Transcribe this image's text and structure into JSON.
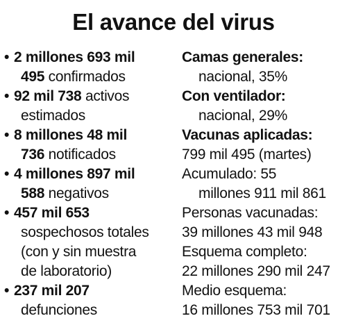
{
  "title": "El avance del virus",
  "bullet": "•",
  "left": {
    "confirmados": {
      "l1": "2 millones 693 mil",
      "l2_num": "495",
      "l2_text": " confirmados"
    },
    "activos": {
      "l1_num": "92 mil 738",
      "l1_text": " activos",
      "l2": "estimados"
    },
    "notificados": {
      "l1": "8 millones 48 mil",
      "l2_num": "736",
      "l2_text": " notificados"
    },
    "negativos": {
      "l1": "4 millones 897 mil",
      "l2_num": "588",
      "l2_text": " negativos"
    },
    "sospechosos": {
      "l1": "457 mil 653",
      "l2": "sospechosos totales",
      "l3": "(con y sin muestra",
      "l4": "de laboratorio)"
    },
    "defunciones": {
      "l1": "237 mil 207",
      "l2": "defunciones"
    }
  },
  "right": {
    "camas": {
      "label": "Camas generales:",
      "value": "nacional, 35%"
    },
    "ventilador": {
      "label": "Con ventilador:",
      "value": "nacional, 29%"
    },
    "vacunas": {
      "label": "Vacunas aplicadas:",
      "value": "799 mil 495 (martes)"
    },
    "acumulado": {
      "l1": "Acumulado: 55",
      "l2": "millones 911 mil 861"
    },
    "personas": {
      "label": "Personas vacunadas:",
      "value": "39 millones 43 mil 948"
    },
    "completo": {
      "label": "Esquema completo:",
      "value": "22 millones 290 mil 247"
    },
    "medio": {
      "label": "Medio esquema:",
      "value": "16 millones 753 mil 701"
    }
  }
}
